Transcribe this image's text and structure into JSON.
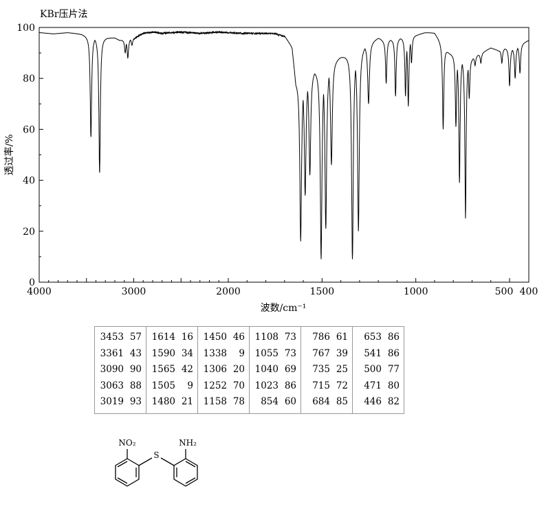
{
  "method_label": "KBr压片法",
  "chart_data": {
    "type": "line",
    "title": "",
    "xlabel": "波数/cm⁻¹",
    "ylabel": "透过率/%",
    "xlim": [
      4000,
      400
    ],
    "ylim": [
      0,
      100
    ],
    "x_reversed": true,
    "grid": false,
    "x_ticks": [
      4000,
      3000,
      2000,
      1500,
      1000,
      500,
      400
    ],
    "x_tick_labels": [
      "4000",
      "3000",
      "2000",
      "1500",
      "1000",
      "500",
      "400"
    ],
    "y_ticks": [
      0,
      20,
      40,
      60,
      80,
      100
    ],
    "y_tick_labels": [
      "0",
      "20",
      "40",
      "60",
      "80",
      "100"
    ],
    "baseline": [
      [
        4000,
        98
      ],
      [
        3850,
        97.5
      ],
      [
        3700,
        98
      ],
      [
        3550,
        97.5
      ],
      [
        3500,
        97
      ],
      [
        3200,
        96
      ],
      [
        3150,
        95
      ],
      [
        3000,
        96
      ],
      [
        2900,
        98
      ],
      [
        2800,
        98.5
      ],
      [
        2700,
        98
      ],
      [
        2500,
        98.5
      ],
      [
        2300,
        98
      ],
      [
        2100,
        98.5
      ],
      [
        1900,
        98
      ],
      [
        1750,
        98
      ],
      [
        1700,
        97
      ],
      [
        1660,
        93
      ],
      [
        1640,
        80
      ],
      [
        1200,
        96
      ],
      [
        1170,
        95
      ],
      [
        1000,
        97
      ],
      [
        950,
        98
      ],
      [
        900,
        98
      ],
      [
        870,
        95
      ],
      [
        820,
        90
      ],
      [
        700,
        88
      ],
      [
        650,
        90
      ],
      [
        600,
        92
      ],
      [
        560,
        91
      ],
      [
        520,
        92
      ],
      [
        480,
        92
      ],
      [
        430,
        94
      ],
      [
        400,
        95
      ]
    ],
    "peaks": [
      {
        "wn": 3453,
        "t": 57
      },
      {
        "wn": 3361,
        "t": 43
      },
      {
        "wn": 3090,
        "t": 90
      },
      {
        "wn": 3063,
        "t": 88
      },
      {
        "wn": 3019,
        "t": 93
      },
      {
        "wn": 1614,
        "t": 16
      },
      {
        "wn": 1590,
        "t": 34
      },
      {
        "wn": 1565,
        "t": 42
      },
      {
        "wn": 1505,
        "t": 9
      },
      {
        "wn": 1480,
        "t": 21
      },
      {
        "wn": 1450,
        "t": 46
      },
      {
        "wn": 1338,
        "t": 9
      },
      {
        "wn": 1306,
        "t": 20
      },
      {
        "wn": 1252,
        "t": 70
      },
      {
        "wn": 1158,
        "t": 78
      },
      {
        "wn": 1108,
        "t": 73
      },
      {
        "wn": 1055,
        "t": 73
      },
      {
        "wn": 1040,
        "t": 69
      },
      {
        "wn": 1023,
        "t": 86
      },
      {
        "wn": 854,
        "t": 60
      },
      {
        "wn": 786,
        "t": 61
      },
      {
        "wn": 767,
        "t": 39
      },
      {
        "wn": 735,
        "t": 25
      },
      {
        "wn": 715,
        "t": 72
      },
      {
        "wn": 684,
        "t": 85
      },
      {
        "wn": 653,
        "t": 86
      },
      {
        "wn": 541,
        "t": 86
      },
      {
        "wn": 500,
        "t": 77
      },
      {
        "wn": 471,
        "t": 80
      },
      {
        "wn": 446,
        "t": 82
      }
    ]
  },
  "peak_table": [
    [
      [
        "3453",
        "57"
      ],
      [
        "3361",
        "43"
      ],
      [
        "3090",
        "90"
      ],
      [
        "3063",
        "88"
      ],
      [
        "3019",
        "93"
      ]
    ],
    [
      [
        "1614",
        "16"
      ],
      [
        "1590",
        "34"
      ],
      [
        "1565",
        "42"
      ],
      [
        "1505",
        "9"
      ],
      [
        "1480",
        "21"
      ]
    ],
    [
      [
        "1450",
        "46"
      ],
      [
        "1338",
        "9"
      ],
      [
        "1306",
        "20"
      ],
      [
        "1252",
        "70"
      ],
      [
        "1158",
        "78"
      ]
    ],
    [
      [
        "1108",
        "73"
      ],
      [
        "1055",
        "73"
      ],
      [
        "1040",
        "69"
      ],
      [
        "1023",
        "86"
      ],
      [
        "854",
        "60"
      ]
    ],
    [
      [
        "786",
        "61"
      ],
      [
        "767",
        "39"
      ],
      [
        "735",
        "25"
      ],
      [
        "715",
        "72"
      ],
      [
        "684",
        "85"
      ]
    ],
    [
      [
        "653",
        "86"
      ],
      [
        "541",
        "86"
      ],
      [
        "500",
        "77"
      ],
      [
        "471",
        "80"
      ],
      [
        "446",
        "82"
      ]
    ]
  ],
  "structure": {
    "label_nitro": "NO₂",
    "label_amine": "NH₂",
    "label_sulfur": "S"
  }
}
